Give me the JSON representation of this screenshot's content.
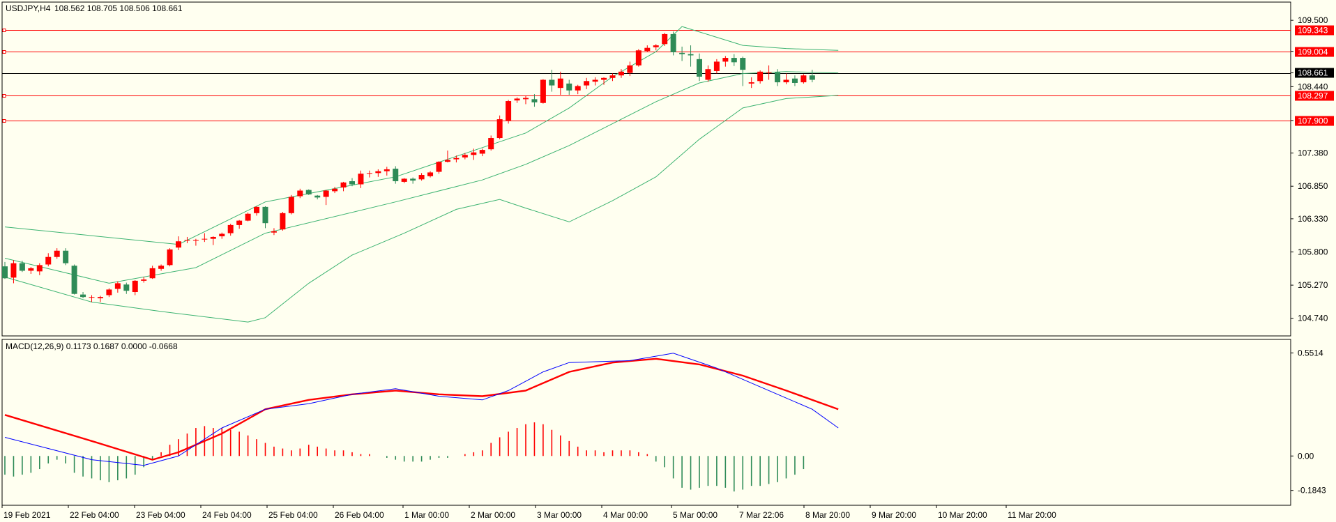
{
  "colors": {
    "background": "#fffff0",
    "up": "#ff0000",
    "down": "#2e8b57",
    "band": "#3cb371",
    "macd_line": "#0000ff",
    "signal_line": "#ff0000",
    "level_line": "#ff0000",
    "price_line": "#000000",
    "tag_red": "#ff0000",
    "tag_black": "#000000"
  },
  "header": {
    "symbol": "USDJPY,H4",
    "ohlc": "108.562 108.705 108.506 108.661"
  },
  "macd_header": {
    "label": "MACD(12,26,9) 0.1173 0.1687 0.0000 -0.0668"
  },
  "chart_data": [
    {
      "type": "candlestick",
      "symbol": "USDJPY",
      "timeframe": "H4",
      "ylim": [
        104.47,
        109.78
      ],
      "y_ticks": [
        "109.500",
        "109.004",
        "108.661",
        "108.440",
        "107.900",
        "107.380",
        "106.850",
        "106.330",
        "105.800",
        "105.270",
        "104.740"
      ],
      "x_ticks": [
        "19 Feb 2021",
        "22 Feb 04:00",
        "23 Feb 04:00",
        "24 Feb 04:00",
        "25 Feb 04:00",
        "26 Feb 04:00",
        "1 Mar 00:00",
        "2 Mar 00:00",
        "3 Mar 00:00",
        "4 Mar 00:00",
        "5 Mar 00:00",
        "7 Mar 22:06",
        "8 Mar 20:00",
        "9 Mar 20:00",
        "10 Mar 20:00",
        "11 Mar 20:00"
      ],
      "horizontal_levels": [
        "109.343",
        "109.004",
        "108.297",
        "107.900"
      ],
      "current_price": "108.661",
      "candles": [
        [
          105.57,
          105.64,
          105.37,
          105.38
        ],
        [
          105.39,
          105.67,
          105.3,
          105.62
        ],
        [
          105.62,
          105.66,
          105.48,
          105.5
        ],
        [
          105.5,
          105.56,
          105.45,
          105.54
        ],
        [
          105.49,
          105.62,
          105.43,
          105.59
        ],
        [
          105.6,
          105.78,
          105.57,
          105.72
        ],
        [
          105.72,
          105.86,
          105.69,
          105.82
        ],
        [
          105.82,
          105.86,
          105.59,
          105.62
        ],
        [
          105.58,
          105.6,
          105.12,
          105.13
        ],
        [
          105.12,
          105.16,
          105.06,
          105.08
        ],
        [
          105.07,
          105.11,
          105.0,
          105.08
        ],
        [
          105.06,
          105.1,
          105.0,
          105.08
        ],
        [
          105.11,
          105.22,
          105.08,
          105.2
        ],
        [
          105.21,
          105.33,
          105.15,
          105.3
        ],
        [
          105.28,
          105.31,
          105.13,
          105.18
        ],
        [
          105.16,
          105.35,
          105.11,
          105.34
        ],
        [
          105.34,
          105.4,
          105.31,
          105.36
        ],
        [
          105.38,
          105.58,
          105.37,
          105.54
        ],
        [
          105.53,
          105.6,
          105.5,
          105.58
        ],
        [
          105.59,
          105.86,
          105.57,
          105.84
        ],
        [
          105.87,
          106.05,
          105.83,
          105.97
        ],
        [
          105.98,
          106.04,
          105.94,
          105.99
        ],
        [
          105.98,
          106.01,
          105.9,
          105.99
        ],
        [
          106.01,
          106.1,
          105.96,
          106.01
        ],
        [
          106.01,
          106.05,
          105.91,
          106.04
        ],
        [
          106.05,
          106.11,
          106.01,
          106.09
        ],
        [
          106.1,
          106.25,
          106.06,
          106.23
        ],
        [
          106.23,
          106.31,
          106.17,
          106.3
        ],
        [
          106.3,
          106.43,
          106.29,
          106.41
        ],
        [
          106.42,
          106.53,
          106.38,
          106.52
        ],
        [
          106.52,
          106.53,
          106.18,
          106.26
        ],
        [
          106.11,
          106.18,
          106.07,
          106.13
        ],
        [
          106.16,
          106.44,
          106.14,
          106.42
        ],
        [
          106.42,
          106.71,
          106.4,
          106.68
        ],
        [
          106.69,
          106.81,
          106.66,
          106.78
        ],
        [
          106.79,
          106.8,
          106.71,
          106.72
        ],
        [
          106.7,
          106.71,
          106.64,
          106.67
        ],
        [
          106.68,
          106.79,
          106.55,
          106.78
        ],
        [
          106.77,
          106.84,
          106.74,
          106.81
        ],
        [
          106.83,
          106.92,
          106.77,
          106.91
        ],
        [
          106.93,
          106.98,
          106.85,
          106.88
        ],
        [
          106.88,
          107.1,
          106.82,
          107.05
        ],
        [
          107.05,
          107.1,
          106.99,
          107.06
        ],
        [
          107.06,
          107.12,
          107.0,
          107.09
        ],
        [
          107.09,
          107.16,
          107.02,
          107.12
        ],
        [
          107.13,
          107.17,
          106.89,
          106.93
        ],
        [
          106.92,
          106.98,
          106.9,
          106.97
        ],
        [
          106.97,
          106.99,
          106.89,
          106.94
        ],
        [
          106.96,
          107.06,
          106.94,
          107.03
        ],
        [
          107.01,
          107.09,
          106.99,
          107.07
        ],
        [
          107.08,
          107.25,
          107.05,
          107.24
        ],
        [
          107.24,
          107.42,
          107.23,
          107.27
        ],
        [
          107.28,
          107.34,
          107.23,
          107.3
        ],
        [
          107.31,
          107.38,
          107.28,
          107.35
        ],
        [
          107.35,
          107.45,
          107.27,
          107.39
        ],
        [
          107.37,
          107.45,
          107.33,
          107.43
        ],
        [
          107.44,
          107.66,
          107.42,
          107.62
        ],
        [
          107.62,
          107.98,
          107.6,
          107.92
        ],
        [
          107.9,
          108.23,
          107.85,
          108.21
        ],
        [
          108.22,
          108.27,
          108.18,
          108.25
        ],
        [
          108.24,
          108.29,
          108.16,
          108.26
        ],
        [
          108.24,
          108.32,
          108.12,
          108.19
        ],
        [
          108.18,
          108.56,
          108.17,
          108.55
        ],
        [
          108.55,
          108.71,
          108.36,
          108.46
        ],
        [
          108.42,
          108.68,
          108.31,
          108.57
        ],
        [
          108.49,
          108.55,
          108.31,
          108.38
        ],
        [
          108.38,
          108.47,
          108.32,
          108.45
        ],
        [
          108.46,
          108.58,
          108.4,
          108.53
        ],
        [
          108.52,
          108.59,
          108.46,
          108.55
        ],
        [
          108.55,
          108.59,
          108.47,
          108.58
        ],
        [
          108.58,
          108.65,
          108.53,
          108.62
        ],
        [
          108.62,
          108.72,
          108.58,
          108.68
        ],
        [
          108.66,
          108.84,
          108.61,
          108.78
        ],
        [
          108.78,
          109.04,
          108.76,
          109.02
        ],
        [
          109.01,
          109.1,
          108.99,
          109.06
        ],
        [
          109.07,
          109.12,
          109.02,
          109.1
        ],
        [
          109.12,
          109.3,
          109.09,
          109.28
        ],
        [
          109.28,
          109.32,
          108.94,
          108.99
        ],
        [
          108.98,
          109.08,
          108.85,
          108.96
        ],
        [
          108.96,
          109.1,
          108.76,
          108.94
        ],
        [
          108.88,
          108.97,
          108.53,
          108.6
        ],
        [
          108.55,
          108.78,
          108.52,
          108.72
        ],
        [
          108.69,
          108.88,
          108.65,
          108.84
        ],
        [
          108.84,
          108.93,
          108.76,
          108.9
        ],
        [
          108.9,
          108.96,
          108.77,
          108.83
        ],
        [
          108.9,
          108.92,
          108.45,
          108.71
        ],
        [
          108.49,
          108.59,
          108.42,
          108.51
        ],
        [
          108.53,
          108.7,
          108.49,
          108.68
        ],
        [
          108.67,
          108.78,
          108.55,
          108.67
        ],
        [
          108.67,
          108.72,
          108.45,
          108.51
        ],
        [
          108.51,
          108.65,
          108.48,
          108.55
        ],
        [
          108.57,
          108.62,
          108.45,
          108.5
        ],
        [
          108.51,
          108.64,
          108.49,
          108.62
        ],
        [
          108.62,
          108.71,
          108.51,
          108.55
        ]
      ],
      "bollinger": {
        "upper": [
          [
            0,
            106.2
          ],
          [
            20,
            105.92
          ],
          [
            30,
            106.6
          ],
          [
            45,
            107.0
          ],
          [
            60,
            107.7
          ],
          [
            65,
            108.1
          ],
          [
            70,
            108.6
          ],
          [
            75,
            109.0
          ],
          [
            78,
            109.4
          ],
          [
            85,
            109.1
          ],
          [
            90,
            109.05
          ],
          [
            96,
            109.02
          ]
        ],
        "middle": [
          [
            0,
            105.7
          ],
          [
            12,
            105.3
          ],
          [
            22,
            105.55
          ],
          [
            30,
            106.1
          ],
          [
            45,
            106.6
          ],
          [
            55,
            106.95
          ],
          [
            60,
            107.2
          ],
          [
            65,
            107.5
          ],
          [
            70,
            107.85
          ],
          [
            75,
            108.2
          ],
          [
            80,
            108.5
          ],
          [
            85,
            108.65
          ],
          [
            90,
            108.68
          ],
          [
            96,
            108.66
          ]
        ],
        "lower": [
          [
            0,
            105.4
          ],
          [
            10,
            105.0
          ],
          [
            18,
            104.85
          ],
          [
            28,
            104.68
          ],
          [
            30,
            104.75
          ],
          [
            35,
            105.3
          ],
          [
            40,
            105.75
          ],
          [
            46,
            106.1
          ],
          [
            52,
            106.48
          ],
          [
            57,
            106.64
          ],
          [
            60,
            106.5
          ],
          [
            65,
            106.28
          ],
          [
            70,
            106.62
          ],
          [
            75,
            107.0
          ],
          [
            80,
            107.6
          ],
          [
            85,
            108.1
          ],
          [
            90,
            108.25
          ],
          [
            96,
            108.3
          ]
        ]
      }
    },
    {
      "type": "macd",
      "title": "MACD(12,26,9) 0.1173 0.1687 0.0000 -0.0668",
      "ylim": [
        -0.26,
        0.62
      ],
      "y_ticks": [
        "0.5514",
        "0.00",
        "-0.1843"
      ],
      "histogram": [
        -0.1,
        -0.11,
        -0.1,
        -0.09,
        -0.07,
        -0.04,
        -0.02,
        -0.04,
        -0.09,
        -0.11,
        -0.12,
        -0.13,
        -0.14,
        -0.13,
        -0.12,
        -0.1,
        -0.06,
        -0.02,
        0.02,
        0.06,
        0.09,
        0.12,
        0.15,
        0.16,
        0.15,
        0.15,
        0.14,
        0.13,
        0.11,
        0.09,
        0.07,
        0.05,
        0.04,
        0.03,
        0.04,
        0.06,
        0.05,
        0.04,
        0.03,
        0.03,
        0.02,
        0.01,
        0.01,
        0.0,
        -0.01,
        -0.02,
        -0.03,
        -0.03,
        -0.03,
        -0.02,
        -0.01,
        -0.01,
        0.0,
        0.01,
        0.02,
        0.03,
        0.07,
        0.1,
        0.13,
        0.15,
        0.17,
        0.18,
        0.17,
        0.14,
        0.11,
        0.08,
        0.05,
        0.03,
        0.03,
        0.02,
        0.03,
        0.03,
        0.03,
        0.02,
        0.01,
        -0.03,
        -0.06,
        -0.12,
        -0.17,
        -0.18,
        -0.17,
        -0.16,
        -0.16,
        -0.17,
        -0.19,
        -0.18,
        -0.16,
        -0.16,
        -0.15,
        -0.14,
        -0.12,
        -0.1,
        -0.07
      ],
      "macd_line": [
        [
          0,
          0.1
        ],
        [
          10,
          -0.02
        ],
        [
          16,
          -0.05
        ],
        [
          20,
          0.0
        ],
        [
          25,
          0.15
        ],
        [
          30,
          0.25
        ],
        [
          35,
          0.28
        ],
        [
          40,
          0.33
        ],
        [
          45,
          0.36
        ],
        [
          50,
          0.32
        ],
        [
          55,
          0.3
        ],
        [
          58,
          0.35
        ],
        [
          62,
          0.45
        ],
        [
          65,
          0.5
        ],
        [
          72,
          0.51
        ],
        [
          77,
          0.55
        ],
        [
          82,
          0.47
        ],
        [
          88,
          0.35
        ],
        [
          93,
          0.25
        ],
        [
          96,
          0.15
        ]
      ],
      "signal_line": [
        [
          0,
          0.22
        ],
        [
          10,
          0.08
        ],
        [
          17,
          -0.02
        ],
        [
          20,
          0.02
        ],
        [
          25,
          0.12
        ],
        [
          30,
          0.25
        ],
        [
          35,
          0.3
        ],
        [
          40,
          0.33
        ],
        [
          45,
          0.35
        ],
        [
          50,
          0.33
        ],
        [
          55,
          0.32
        ],
        [
          60,
          0.35
        ],
        [
          65,
          0.45
        ],
        [
          70,
          0.5
        ],
        [
          75,
          0.52
        ],
        [
          80,
          0.49
        ],
        [
          85,
          0.43
        ],
        [
          90,
          0.35
        ],
        [
          96,
          0.25
        ]
      ]
    }
  ]
}
